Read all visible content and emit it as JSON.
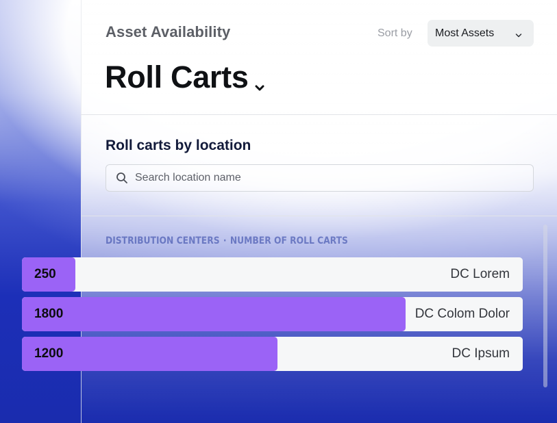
{
  "header": {
    "subtitle": "Asset Availability",
    "title": "Roll Carts",
    "sort": {
      "label": "Sort by",
      "selected": "Most Assets"
    }
  },
  "section": {
    "title": "Roll carts by location",
    "search_placeholder": "Search location name"
  },
  "list": {
    "header_left": "DISTRIBUTION CENTERS",
    "header_separator": "·",
    "header_right": "NUMBER OF ROLL CARTS",
    "max_value": 2350,
    "rows": [
      {
        "value": 250,
        "name": "DC Lorem"
      },
      {
        "value": 1800,
        "name": "DC Colom Dolor"
      },
      {
        "value": 1200,
        "name": "DC Ipsum"
      }
    ]
  },
  "colors": {
    "bar_fill": "#9b63f6",
    "bar_track": "#f6f7f8",
    "background_blue": "#1c2fb8"
  },
  "icons": {
    "title_chevron": "chevron-down-icon",
    "sort_chevron": "chevron-down-icon",
    "search": "search-icon"
  }
}
